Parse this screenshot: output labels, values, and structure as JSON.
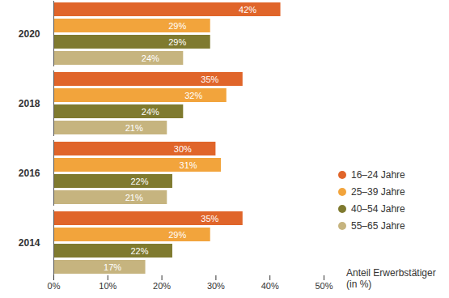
{
  "chart_data": {
    "type": "bar",
    "orientation": "horizontal",
    "categories": [
      "2020",
      "2018",
      "2016",
      "2014"
    ],
    "series": [
      {
        "name": "16–24 Jahre",
        "color": "#e0652a",
        "values": [
          42,
          35,
          30,
          35
        ],
        "value_labels": [
          "42%",
          "35%",
          "30%",
          "35%"
        ]
      },
      {
        "name": "25–39 Jahre",
        "color": "#f2a43c",
        "values": [
          29,
          32,
          31,
          29
        ],
        "value_labels": [
          "29%",
          "32%",
          "31%",
          "29%"
        ]
      },
      {
        "name": "40–54 Jahre",
        "color": "#7f7a2f",
        "values": [
          29,
          24,
          22,
          22
        ],
        "value_labels": [
          "29%",
          "24%",
          "22%",
          "22%"
        ]
      },
      {
        "name": "55–65 Jahre",
        "color": "#c6b47f",
        "values": [
          24,
          21,
          21,
          17
        ],
        "value_labels": [
          "24%",
          "21%",
          "21%",
          "17%"
        ]
      }
    ],
    "x_label": "Anteil Erwerbstätiger (in %)",
    "xlim": [
      0,
      50
    ],
    "xticks": [
      {
        "value": 0,
        "label": "0%"
      },
      {
        "value": 10,
        "label": "10%"
      },
      {
        "value": 20,
        "label": "20%"
      },
      {
        "value": 30,
        "label": "30%"
      },
      {
        "value": 40,
        "label": "40%"
      },
      {
        "value": 50,
        "label": "50%"
      }
    ],
    "grid": false,
    "data_labels": true,
    "legend": "right"
  }
}
